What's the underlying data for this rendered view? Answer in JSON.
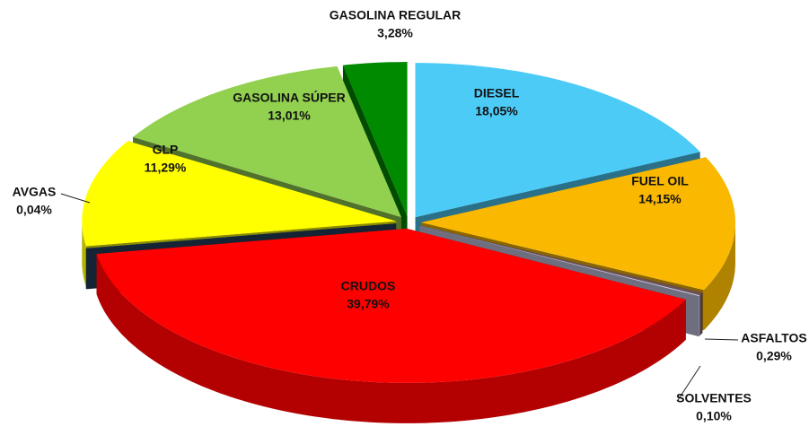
{
  "chart_data": {
    "type": "pie",
    "categories": [
      "DIESEL",
      "FUEL OIL",
      "ASFALTOS",
      "SOLVENTES",
      "CRUDOS",
      "AVGAS",
      "GLP",
      "GASOLINA SÚPER",
      "GASOLINA REGULAR"
    ],
    "values": [
      18.05,
      14.15,
      0.29,
      0.1,
      39.79,
      0.04,
      11.29,
      13.01,
      3.28
    ],
    "value_labels": [
      "18,05%",
      "14,15%",
      "0,29%",
      "0,10%",
      "39,79%",
      "0,04%",
      "11,29%",
      "13,01%",
      "3,28%"
    ],
    "colors": [
      "#4dcbf7",
      "#fab900",
      "#6e5050",
      "#c8c8e6",
      "#ff0000",
      "#24415f",
      "#ffff00",
      "#92d050",
      "#008a00"
    ]
  }
}
